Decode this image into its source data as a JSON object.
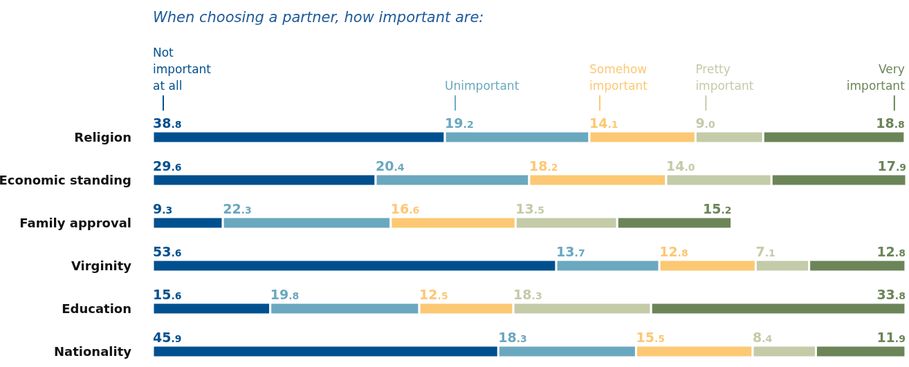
{
  "chart_data": {
    "type": "bar",
    "orientation": "horizontal",
    "stacked": true,
    "title": "When choosing a partner, how important are:",
    "categories": [
      "Religion",
      "Economic standing",
      "Family approval",
      "Virginity",
      "Education",
      "Nationality"
    ],
    "legend": "top",
    "series": [
      {
        "name": "Not important at all",
        "color": "#00508f",
        "values": [
          38.8,
          29.6,
          9.3,
          53.6,
          15.6,
          45.9
        ],
        "value_labels": [
          "38.8",
          "29.6",
          "9.3",
          "53.6",
          "15.6",
          "45.9"
        ]
      },
      {
        "name": "Unimportant",
        "color": "#6aa8bf",
        "values": [
          19.2,
          20.4,
          22.3,
          13.7,
          19.8,
          18.3
        ],
        "value_labels": [
          "19.2",
          "20.4",
          "22.3",
          "13.7",
          "19.8",
          "18.3"
        ]
      },
      {
        "name": "Somehow important",
        "color": "#fcc873",
        "values": [
          14.1,
          18.2,
          16.6,
          12.8,
          12.5,
          15.5
        ],
        "value_labels": [
          "14.1",
          "18.2",
          "16.6",
          "12.8",
          "12.5",
          "15.5"
        ]
      },
      {
        "name": "Pretty important",
        "color": "#c3cba8",
        "values": [
          9.0,
          14.0,
          13.5,
          7.1,
          18.3,
          8.4
        ],
        "value_labels": [
          "9.0",
          "14.0",
          "13.5",
          "7.1",
          "18.3",
          "8.4"
        ]
      },
      {
        "name": "Very important",
        "color": "#6b8558",
        "values": [
          18.8,
          17.9,
          15.2,
          12.8,
          33.8,
          11.9
        ],
        "value_labels": [
          "18.8",
          "17.9",
          "15.2",
          "12.8",
          "33.8",
          "11.9"
        ]
      }
    ]
  }
}
